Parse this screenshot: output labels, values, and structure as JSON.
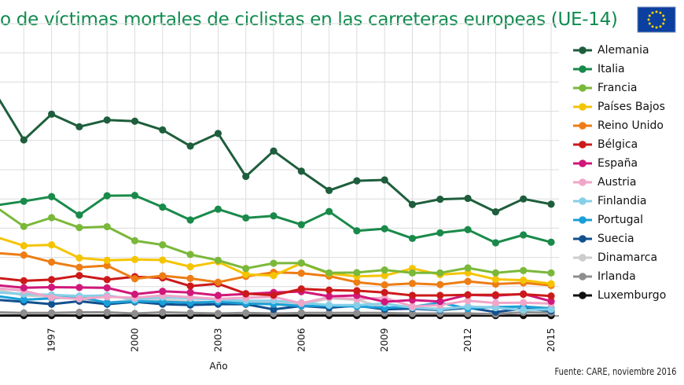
{
  "chart_data": {
    "type": "line",
    "title": "o de víctimas mortales de ciclistas en las carreteras europeas (UE-14)",
    "xlabel": "Año",
    "ylabel": "",
    "x": [
      1995,
      1996,
      1997,
      1998,
      1999,
      2000,
      2001,
      2002,
      2003,
      2004,
      2005,
      2006,
      2007,
      2008,
      2009,
      2010,
      2011,
      2012,
      2013,
      2014,
      2015
    ],
    "x_tick_labels": [
      "1997",
      "2000",
      "2003",
      "2006",
      "2009",
      "2012",
      "2015"
    ],
    "ylim": [
      0,
      1000
    ],
    "grid": true,
    "legend_position": "right",
    "source": "Fuente: CARE, noviembre 2016",
    "series": [
      {
        "name": "Alemania",
        "color": "#1e5e3c",
        "values": [
          758,
          602,
          690,
          647,
          670,
          666,
          636,
          581,
          624,
          477,
          564,
          495,
          429,
          462,
          465,
          381,
          399,
          402,
          356,
          400,
          382
        ]
      },
      {
        "name": "Italia",
        "color": "#1a8a4a",
        "values": [
          378,
          392,
          408,
          345,
          411,
          412,
          372,
          328,
          365,
          335,
          342,
          312,
          357,
          291,
          298,
          265,
          284,
          295,
          250,
          277,
          252
        ]
      },
      {
        "name": "Francia",
        "color": "#7ab83a",
        "values": [
          372,
          306,
          336,
          302,
          305,
          257,
          243,
          210,
          190,
          162,
          180,
          181,
          147,
          148,
          157,
          147,
          147,
          164,
          147,
          155,
          147
        ]
      },
      {
        "name": "Países Bajos",
        "color": "#f5c400",
        "values": [
          270,
          240,
          243,
          198,
          190,
          193,
          191,
          168,
          185,
          142,
          138,
          180,
          145,
          135,
          138,
          162,
          141,
          147,
          125,
          122,
          110
        ]
      },
      {
        "name": "Reino Unido",
        "color": "#ed7d14",
        "values": [
          215,
          208,
          184,
          166,
          172,
          127,
          137,
          128,
          115,
          135,
          149,
          146,
          136,
          115,
          106,
          111,
          107,
          118,
          109,
          113,
          104
        ]
      },
      {
        "name": "Bélgica",
        "color": "#cc1a1a",
        "values": [
          130,
          120,
          124,
          138,
          124,
          134,
          130,
          102,
          110,
          76,
          71,
          92,
          88,
          86,
          80,
          70,
          70,
          72,
          72,
          74,
          68
        ]
      },
      {
        "name": "España",
        "color": "#d0187a",
        "values": [
          105,
          96,
          98,
          97,
          96,
          74,
          84,
          80,
          70,
          75,
          80,
          83,
          67,
          70,
          48,
          54,
          49,
          72,
          69,
          75,
          50
        ]
      },
      {
        "name": "Austria",
        "color": "#f0a6c8",
        "values": [
          95,
          86,
          63,
          58,
          65,
          62,
          70,
          64,
          58,
          62,
          65,
          43,
          64,
          57,
          62,
          32,
          37,
          52,
          44,
          45,
          42
        ]
      },
      {
        "name": "Finlandia",
        "color": "#86cfe8",
        "values": [
          80,
          75,
          72,
          68,
          70,
          56,
          64,
          60,
          55,
          52,
          52,
          45,
          37,
          37,
          42,
          28,
          22,
          32,
          28,
          20,
          22
        ]
      },
      {
        "name": "Portugal",
        "color": "#1aa0d8",
        "values": [
          68,
          55,
          60,
          65,
          45,
          50,
          48,
          45,
          48,
          42,
          40,
          34,
          35,
          32,
          28,
          31,
          45,
          25,
          30,
          32,
          25
        ]
      },
      {
        "name": "Suecia",
        "color": "#12508e",
        "values": [
          55,
          48,
          40,
          50,
          40,
          48,
          40,
          37,
          40,
          40,
          22,
          34,
          28,
          35,
          22,
          25,
          20,
          28,
          13,
          25,
          17
        ]
      },
      {
        "name": "Dinamarca",
        "color": "#cccccc",
        "values": [
          90,
          70,
          65,
          60,
          45,
          55,
          55,
          50,
          45,
          50,
          45,
          38,
          60,
          55,
          28,
          26,
          25,
          30,
          30,
          32,
          28
        ]
      },
      {
        "name": "Irlanda",
        "color": "#8e8e8e",
        "values": [
          12,
          10,
          10,
          12,
          12,
          8,
          12,
          10,
          8,
          10,
          8,
          10,
          10,
          10,
          10,
          8,
          8,
          8,
          6,
          12,
          10
        ]
      },
      {
        "name": "Luxemburgo",
        "color": "#111111",
        "values": [
          1,
          1,
          1,
          1,
          1,
          1,
          1,
          1,
          1,
          1,
          1,
          1,
          1,
          1,
          1,
          1,
          1,
          1,
          1,
          1,
          1
        ]
      }
    ]
  }
}
